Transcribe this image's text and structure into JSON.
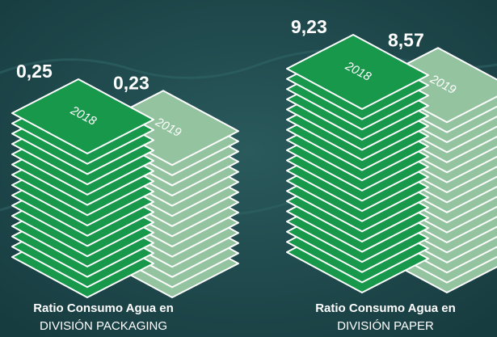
{
  "chart_data": [
    {
      "type": "bar",
      "title": "Ratio Consumo Agua en",
      "subtitle": "DIVISIÓN PACKAGING",
      "categories": [
        "2018",
        "2019"
      ],
      "values": [
        0.25,
        0.23
      ],
      "value_labels": [
        "0,25",
        "0,23"
      ],
      "colors": [
        "#17984b",
        "#93c39f"
      ]
    },
    {
      "type": "bar",
      "title": "Ratio Consumo Agua en",
      "subtitle": "DIVISIÓN PAPER",
      "categories": [
        "2018",
        "2019"
      ],
      "values": [
        9.23,
        8.57
      ],
      "value_labels": [
        "9,23",
        "8,57"
      ],
      "colors": [
        "#17984b",
        "#93c39f"
      ]
    }
  ]
}
